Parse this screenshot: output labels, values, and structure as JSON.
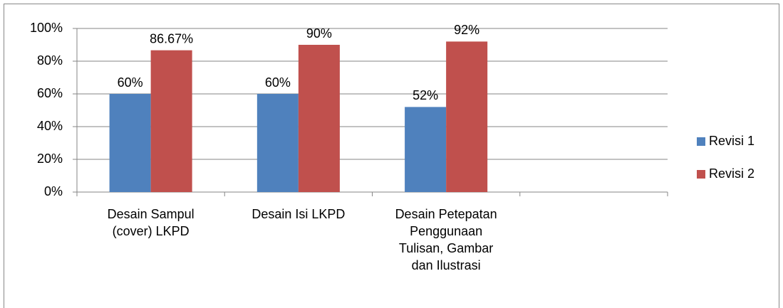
{
  "chart_data": {
    "type": "bar",
    "categories": [
      "Desain Sampul (cover) LKPD",
      "Desain Isi LKPD",
      "Desain Petepatan Penggunaan Tulisan, Gambar dan Ilustrasi",
      null
    ],
    "series": [
      {
        "name": "Revisi 1",
        "color": "#4f81bd",
        "values": [
          60,
          60,
          52,
          null
        ],
        "value_labels": [
          "60%",
          "60%",
          "52%",
          null
        ]
      },
      {
        "name": "Revisi 2",
        "color": "#c0504d",
        "values": [
          86.67,
          90,
          92,
          null
        ],
        "value_labels": [
          "86.67%",
          "90%",
          "92%",
          null
        ]
      }
    ],
    "ylim": [
      0,
      100
    ],
    "yticks": [
      {
        "value": 0,
        "label": "0%"
      },
      {
        "value": 20,
        "label": "20%"
      },
      {
        "value": 40,
        "label": "40%"
      },
      {
        "value": 60,
        "label": "60%"
      },
      {
        "value": 80,
        "label": "80%"
      },
      {
        "value": 100,
        "label": "100%"
      }
    ],
    "grid": true,
    "legend": "right"
  }
}
